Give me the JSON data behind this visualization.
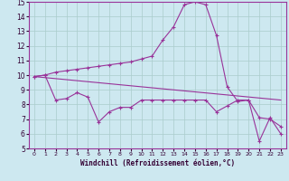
{
  "xlabel": "Windchill (Refroidissement éolien,°C)",
  "background_color": "#cde8f0",
  "grid_color": "#aacccc",
  "line_color": "#993399",
  "xlim": [
    -0.5,
    23.5
  ],
  "ylim": [
    5,
    15
  ],
  "xticks": [
    0,
    1,
    2,
    3,
    4,
    5,
    6,
    7,
    8,
    9,
    10,
    11,
    12,
    13,
    14,
    15,
    16,
    17,
    18,
    19,
    20,
    21,
    22,
    23
  ],
  "yticks": [
    5,
    6,
    7,
    8,
    9,
    10,
    11,
    12,
    13,
    14,
    15
  ],
  "line1_x": [
    0,
    1,
    2,
    3,
    4,
    5,
    6,
    7,
    8,
    9,
    10,
    11,
    12,
    13,
    14,
    15,
    16,
    17,
    18,
    19,
    20,
    21,
    22,
    23
  ],
  "line1_y": [
    9.9,
    10.0,
    10.2,
    10.3,
    10.4,
    10.5,
    10.6,
    10.7,
    10.8,
    10.9,
    11.1,
    11.3,
    12.4,
    13.3,
    14.8,
    15.0,
    14.8,
    12.7,
    9.2,
    8.2,
    8.3,
    7.1,
    7.0,
    6.5
  ],
  "line2_x": [
    0,
    1,
    2,
    3,
    4,
    5,
    6,
    7,
    8,
    9,
    10,
    11,
    12,
    13,
    14,
    15,
    16,
    17,
    18,
    19,
    20,
    21,
    22,
    23
  ],
  "line2_y": [
    9.9,
    10.0,
    8.3,
    8.4,
    8.8,
    8.5,
    6.8,
    7.5,
    7.8,
    7.8,
    8.3,
    8.3,
    8.3,
    8.3,
    8.3,
    8.3,
    8.3,
    7.5,
    7.9,
    8.3,
    8.3,
    5.5,
    7.1,
    6.0
  ],
  "line3_x": [
    0,
    23
  ],
  "line3_y": [
    9.9,
    8.3
  ],
  "xlabel_fontsize": 5.5,
  "tick_fontsize_x": 4.5,
  "tick_fontsize_y": 5.5
}
